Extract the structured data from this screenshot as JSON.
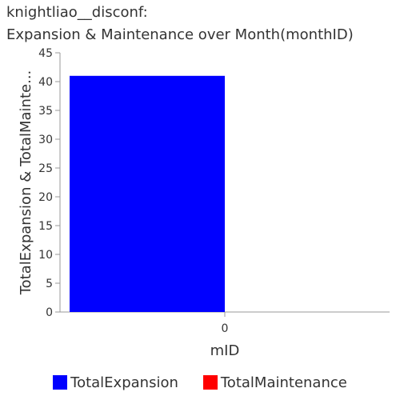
{
  "title_line1": "knightliao__disconf:",
  "title_line2": "Expansion & Maintenance over Month(monthID)",
  "chart_data": {
    "type": "bar",
    "categories": [
      "0"
    ],
    "series": [
      {
        "name": "TotalExpansion",
        "values": [
          41
        ],
        "color": "#0000ff"
      },
      {
        "name": "TotalMaintenance",
        "values": [
          0
        ],
        "color": "#ff0000"
      }
    ],
    "xlabel": "mID",
    "ylabel": "TotalExpansion & TotalMainte...",
    "ylim": [
      0,
      45
    ],
    "yticks": [
      0,
      5,
      10,
      15,
      20,
      25,
      30,
      35,
      40,
      45
    ],
    "grid": false,
    "legend_position": "bottom"
  }
}
